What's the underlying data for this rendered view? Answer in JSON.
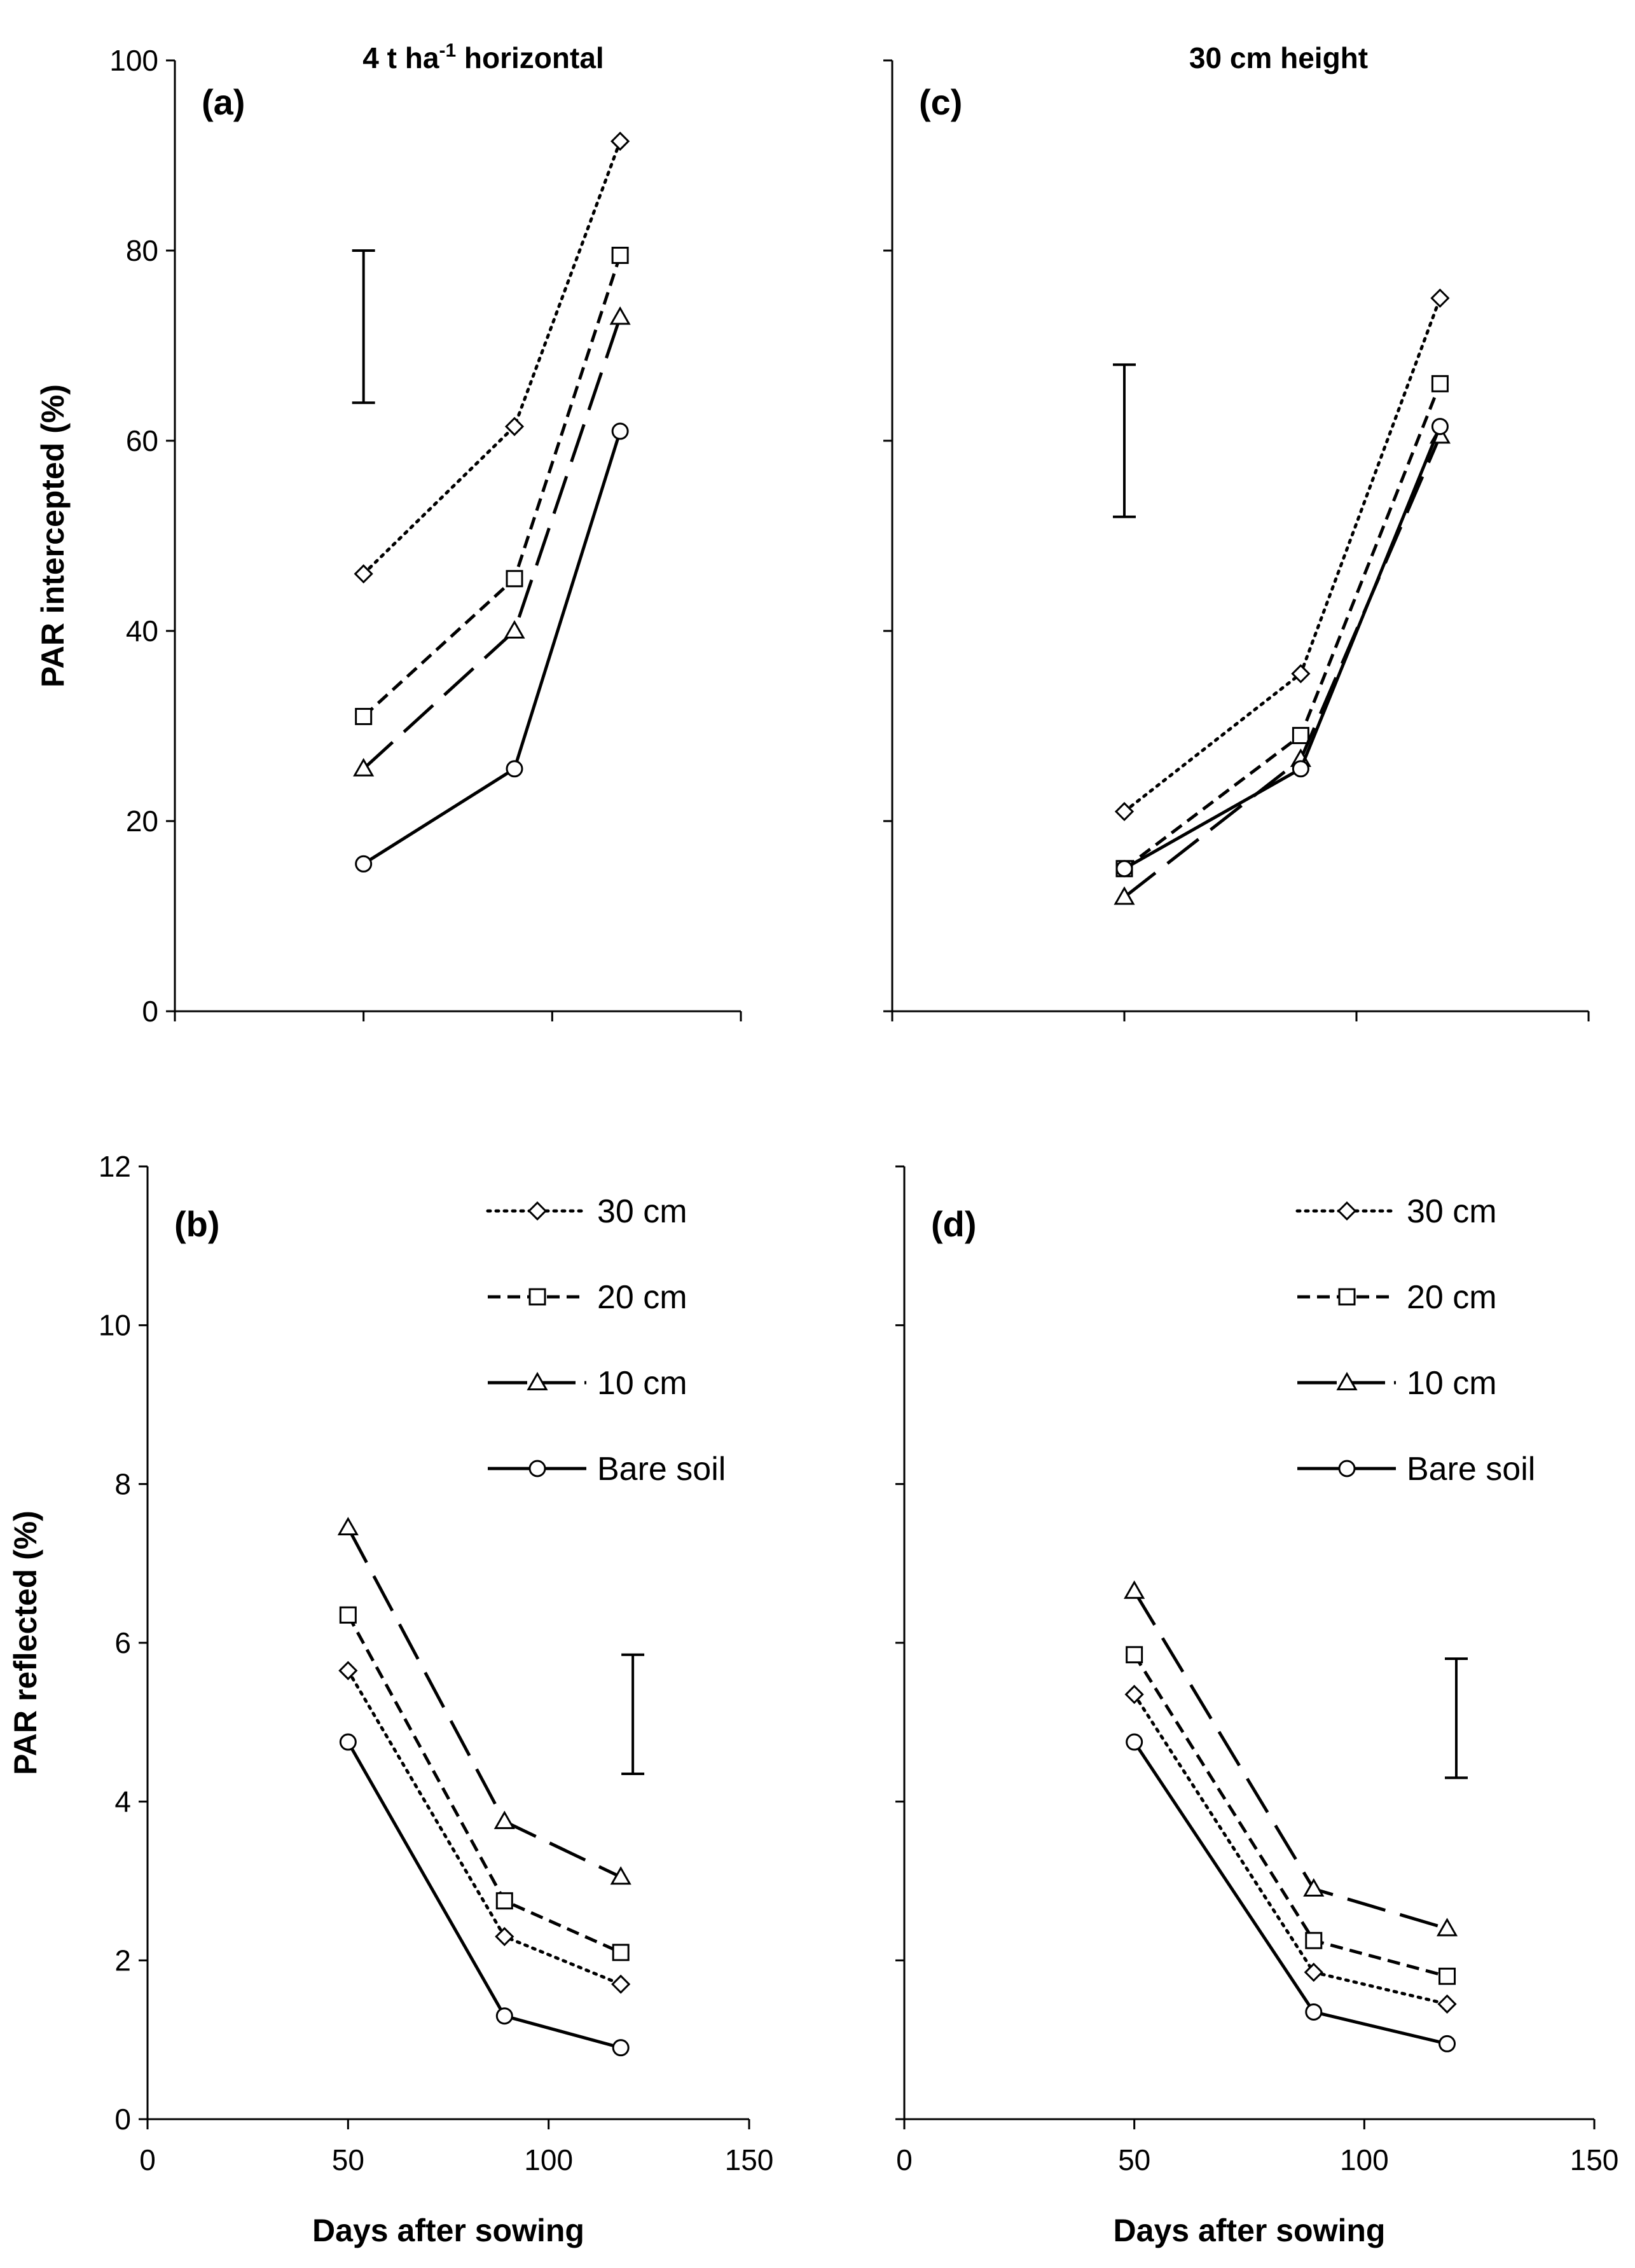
{
  "figure": {
    "line_color": "#000000",
    "marker_fill": "#ffffff"
  },
  "chart_data": [
    {
      "id": "a",
      "type": "line",
      "panel_label": "(a)",
      "title": "4 t ha",
      "title_sup": "-1",
      "title_suffix": " horizontal",
      "xlabel": "",
      "ylabel": "PAR intercepted (%)",
      "xlim": [
        0,
        150
      ],
      "ylim": [
        0,
        100
      ],
      "x_ticks": [
        0,
        50,
        100,
        150
      ],
      "y_ticks": [
        0,
        20,
        40,
        60,
        80,
        100
      ],
      "show_x_tick_labels": false,
      "show_y_tick_labels": true,
      "error_bar": {
        "x": 50,
        "low": 64,
        "high": 80
      },
      "legend": null,
      "series": [
        {
          "name": "30 cm",
          "marker": "diamond",
          "dash": "dotted",
          "x": [
            50,
            90,
            118
          ],
          "y": [
            46,
            61.5,
            91.5
          ]
        },
        {
          "name": "20 cm",
          "marker": "square",
          "dash": "short",
          "x": [
            50,
            90,
            118
          ],
          "y": [
            31,
            45.5,
            79.5
          ]
        },
        {
          "name": "10 cm",
          "marker": "triangle",
          "dash": "long",
          "x": [
            50,
            90,
            118
          ],
          "y": [
            25.5,
            40,
            73
          ]
        },
        {
          "name": "Bare soil",
          "marker": "circle",
          "dash": "solid",
          "x": [
            50,
            90,
            118
          ],
          "y": [
            15.5,
            25.5,
            61
          ]
        }
      ]
    },
    {
      "id": "c",
      "type": "line",
      "panel_label": "(c)",
      "title": "30 cm height",
      "title_sup": "",
      "title_suffix": "",
      "xlabel": "",
      "ylabel": "",
      "xlim": [
        0,
        150
      ],
      "ylim": [
        0,
        100
      ],
      "x_ticks": [
        0,
        50,
        100,
        150
      ],
      "y_ticks": [
        0,
        20,
        40,
        60,
        80,
        100
      ],
      "show_x_tick_labels": false,
      "show_y_tick_labels": false,
      "error_bar": {
        "x": 50,
        "low": 52,
        "high": 68
      },
      "legend": null,
      "series": [
        {
          "name": "30 cm",
          "marker": "diamond",
          "dash": "dotted",
          "x": [
            50,
            88,
            118
          ],
          "y": [
            21,
            35.5,
            75
          ]
        },
        {
          "name": "20 cm",
          "marker": "square",
          "dash": "short",
          "x": [
            50,
            88,
            118
          ],
          "y": [
            15,
            29,
            66
          ]
        },
        {
          "name": "10 cm",
          "marker": "triangle",
          "dash": "long",
          "x": [
            50,
            88,
            118
          ],
          "y": [
            12,
            26.5,
            60.5
          ]
        },
        {
          "name": "Bare soil",
          "marker": "circle",
          "dash": "solid",
          "x": [
            50,
            88,
            118
          ],
          "y": [
            15,
            25.5,
            61.5
          ]
        }
      ]
    },
    {
      "id": "b",
      "type": "line",
      "panel_label": "(b)",
      "title": "",
      "title_sup": "",
      "title_suffix": "",
      "xlabel": "Days after sowing",
      "ylabel": "PAR reflected (%)",
      "xlim": [
        0,
        150
      ],
      "ylim": [
        0,
        12
      ],
      "x_ticks": [
        0,
        50,
        100,
        150
      ],
      "y_ticks": [
        0,
        2,
        4,
        6,
        8,
        10,
        12
      ],
      "show_x_tick_labels": true,
      "show_y_tick_labels": true,
      "error_bar": {
        "x": 121,
        "low": 4.35,
        "high": 5.85
      },
      "legend": [
        "30 cm",
        "20 cm",
        "10 cm",
        "Bare soil"
      ],
      "series": [
        {
          "name": "30 cm",
          "marker": "diamond",
          "dash": "dotted",
          "x": [
            50,
            89,
            118
          ],
          "y": [
            5.65,
            2.3,
            1.7
          ]
        },
        {
          "name": "20 cm",
          "marker": "square",
          "dash": "short",
          "x": [
            50,
            89,
            118
          ],
          "y": [
            6.35,
            2.75,
            2.1
          ]
        },
        {
          "name": "10 cm",
          "marker": "triangle",
          "dash": "long",
          "x": [
            50,
            89,
            118
          ],
          "y": [
            7.45,
            3.75,
            3.05
          ]
        },
        {
          "name": "Bare soil",
          "marker": "circle",
          "dash": "solid",
          "x": [
            50,
            89,
            118
          ],
          "y": [
            4.75,
            1.3,
            0.9
          ]
        }
      ]
    },
    {
      "id": "d",
      "type": "line",
      "panel_label": "(d)",
      "title": "",
      "title_sup": "",
      "title_suffix": "",
      "xlabel": "Days after sowing",
      "ylabel": "",
      "xlim": [
        0,
        150
      ],
      "ylim": [
        0,
        12
      ],
      "x_ticks": [
        0,
        50,
        100,
        150
      ],
      "y_ticks": [
        0,
        2,
        4,
        6,
        8,
        10,
        12
      ],
      "show_x_tick_labels": true,
      "show_y_tick_labels": false,
      "error_bar": {
        "x": 120,
        "low": 4.3,
        "high": 5.8
      },
      "legend": [
        "30 cm",
        "20 cm",
        "10 cm",
        "Bare soil"
      ],
      "series": [
        {
          "name": "30 cm",
          "marker": "diamond",
          "dash": "dotted",
          "x": [
            50,
            89,
            118
          ],
          "y": [
            5.35,
            1.85,
            1.45
          ]
        },
        {
          "name": "20 cm",
          "marker": "square",
          "dash": "short",
          "x": [
            50,
            89,
            118
          ],
          "y": [
            5.85,
            2.25,
            1.8
          ]
        },
        {
          "name": "10 cm",
          "marker": "triangle",
          "dash": "long",
          "x": [
            50,
            89,
            118
          ],
          "y": [
            6.65,
            2.9,
            2.4
          ]
        },
        {
          "name": "Bare soil",
          "marker": "circle",
          "dash": "solid",
          "x": [
            50,
            89,
            118
          ],
          "y": [
            4.75,
            1.35,
            0.95
          ]
        }
      ]
    }
  ]
}
